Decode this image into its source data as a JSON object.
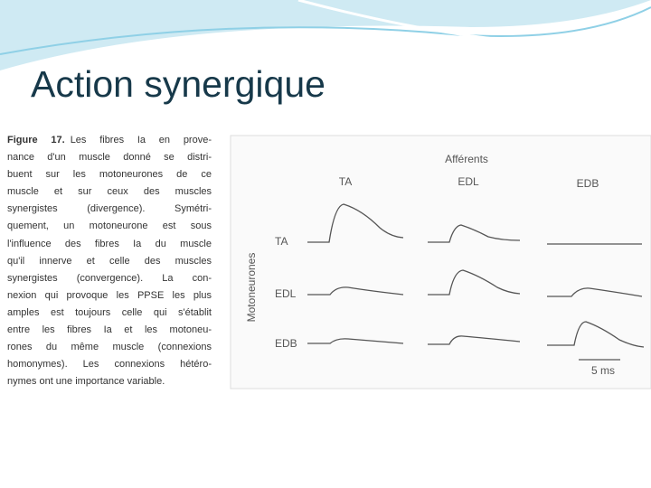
{
  "title": "Action synergique",
  "caption": {
    "label": "Figure 17.",
    "lines": [
      "Les fibres Ia en prove-",
      "nance d'un muscle donné se distri-",
      "buent sur les motoneurones de ce",
      "muscle et sur ceux des muscles",
      "synergistes (divergence). Symétri-",
      "quement, un motoneurone est sous",
      "l'influence des fibres Ia du muscle",
      "qu'il innerve et celle des muscles",
      "synergistes (convergence). La con-",
      "nexion qui provoque les PPSE les plus",
      "amples est toujours celle qui s'établit",
      "entre les fibres Ia et les motoneu-",
      "rones du même muscle (connexions",
      "homonymes). Les connexions hétéro-",
      "nymes ont une importance variable."
    ]
  },
  "figure": {
    "columns_title": "Afférents",
    "columns": [
      "TA",
      "EDL",
      "EDB"
    ],
    "rows_title": "Motoneurones",
    "rows": [
      "TA",
      "EDL",
      "EDB"
    ],
    "scale": "5 ms"
  }
}
